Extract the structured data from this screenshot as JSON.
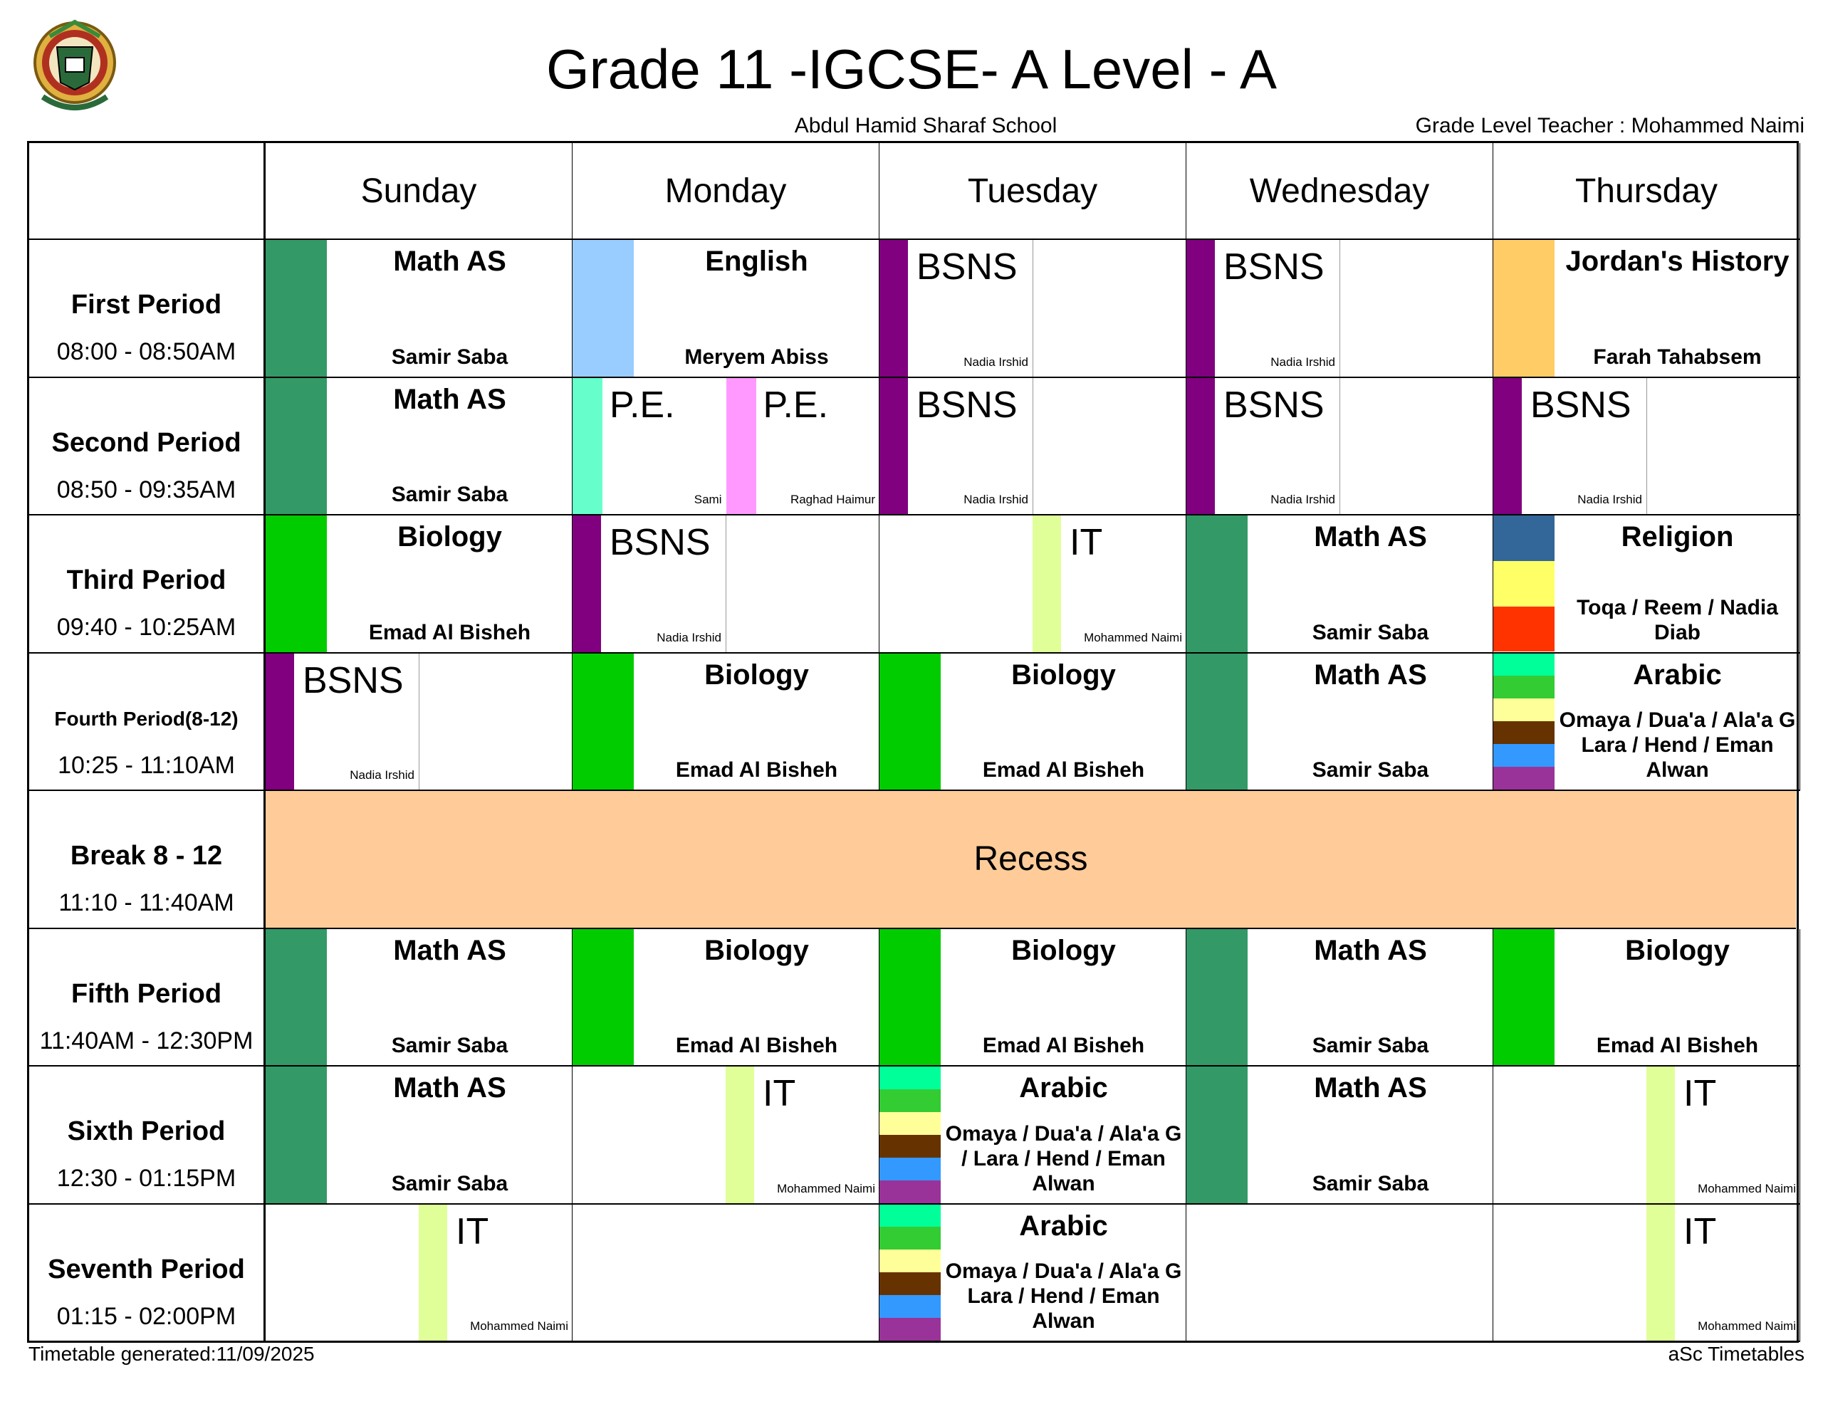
{
  "header": {
    "title": "Grade 11 -IGCSE- A Level - A",
    "school": "Abdul Hamid Sharaf School",
    "grade_teacher": "Grade Level Teacher : Mohammed Naimi"
  },
  "footer": {
    "generated": "Timetable generated:11/09/2025",
    "brand": "aSc Timetables"
  },
  "days": [
    "Sunday",
    "Monday",
    "Tuesday",
    "Wednesday",
    "Thursday"
  ],
  "periods": [
    {
      "name": "First Period",
      "time": "08:00 - 08:50AM"
    },
    {
      "name": "Second Period",
      "time": "08:50 - 09:35AM"
    },
    {
      "name": "Third Period",
      "time": "09:40 - 10:25AM"
    },
    {
      "name": "Fourth Period(8-12)",
      "time": "10:25 - 11:10AM"
    },
    {
      "name": "Break 8 - 12",
      "time": "11:10 - 11:40AM"
    },
    {
      "name": "Fifth Period",
      "time": "11:40AM - 12:30PM"
    },
    {
      "name": "Sixth Period",
      "time": "12:30 - 01:15PM"
    },
    {
      "name": "Seventh Period",
      "time": "01:15 - 02:00PM"
    }
  ],
  "recess": "Recess",
  "colors": {
    "math": "#339966",
    "english": "#99ccff",
    "bsns": "#800080",
    "pe_sami": "#66ffcc",
    "pe_raghad": "#ff99ff",
    "biology": "#00cc00",
    "it": "#e0ff99",
    "jordan": "#ffcc66",
    "recess": "#ffcc99"
  },
  "grid": [
    [
      [
        {
          "style": "wide",
          "title": "Math AS",
          "teacher": "Samir Saba",
          "colors": [
            "#339966"
          ]
        }
      ],
      [
        {
          "style": "wide",
          "title": "English",
          "teacher": "Meryem Abiss",
          "colors": [
            "#99ccff"
          ]
        }
      ],
      [
        {
          "style": "narrow",
          "title": "BSNS",
          "teacher": "Nadia Irshid",
          "color": "#800080"
        }
      ],
      [
        {
          "style": "narrow",
          "title": "BSNS",
          "teacher": "Nadia Irshid",
          "color": "#800080"
        }
      ],
      [
        {
          "style": "wide",
          "title": "Jordan's History",
          "teacher": "Farah Tahabsem",
          "colors": [
            "#ffcc66"
          ]
        }
      ]
    ],
    [
      [
        {
          "style": "wide",
          "title": "Math AS",
          "teacher": "Samir Saba",
          "colors": [
            "#339966"
          ]
        }
      ],
      [
        {
          "style": "half",
          "title": "P.E.",
          "teacher": "Sami",
          "color": "#66ffcc"
        },
        {
          "style": "half",
          "title": "P.E.",
          "teacher": "Raghad Haimur",
          "color": "#ff99ff"
        }
      ],
      [
        {
          "style": "narrow",
          "title": "BSNS",
          "teacher": "Nadia Irshid",
          "color": "#800080"
        }
      ],
      [
        {
          "style": "narrow",
          "title": "BSNS",
          "teacher": "Nadia Irshid",
          "color": "#800080"
        }
      ],
      [
        {
          "style": "narrow",
          "title": "BSNS",
          "teacher": "Nadia Irshid",
          "color": "#800080"
        }
      ]
    ],
    [
      [
        {
          "style": "wide",
          "title": "Biology",
          "teacher": "Emad Al Bisheh",
          "colors": [
            "#00cc00"
          ]
        }
      ],
      [
        {
          "style": "narrow",
          "title": "BSNS",
          "teacher": "Nadia Irshid",
          "color": "#800080"
        }
      ],
      [
        {
          "style": "right",
          "title": "IT",
          "teacher": "Mohammed Naimi",
          "color": "#e0ff99"
        }
      ],
      [
        {
          "style": "wide",
          "title": "Math AS",
          "teacher": "Samir Saba",
          "colors": [
            "#339966"
          ]
        }
      ],
      [
        {
          "style": "wide",
          "title": "Religion",
          "teacher": "Toqa / Reem / Nadia Diab",
          "colors": [
            "#336699",
            "#ffff66",
            "#ff3300"
          ]
        }
      ]
    ],
    [
      [
        {
          "style": "narrow",
          "title": "BSNS",
          "teacher": "Nadia Irshid",
          "color": "#800080"
        }
      ],
      [
        {
          "style": "wide",
          "title": "Biology",
          "teacher": "Emad Al Bisheh",
          "colors": [
            "#00cc00"
          ]
        }
      ],
      [
        {
          "style": "wide",
          "title": "Biology",
          "teacher": "Emad Al Bisheh",
          "colors": [
            "#00cc00"
          ]
        }
      ],
      [
        {
          "style": "wide",
          "title": "Math AS",
          "teacher": "Samir Saba",
          "colors": [
            "#339966"
          ]
        }
      ],
      [
        {
          "style": "wide",
          "title": "Arabic",
          "teacher": "Omaya / Dua'a / Ala'a G Lara / Hend / Eman Alwan",
          "colors": [
            "#00ff99",
            "#33cc33",
            "#ffff99",
            "#663300",
            "#3399ff",
            "#993399"
          ]
        }
      ]
    ],
    null,
    [
      [
        {
          "style": "wide",
          "title": "Math AS",
          "teacher": "Samir Saba",
          "colors": [
            "#339966"
          ]
        }
      ],
      [
        {
          "style": "wide",
          "title": "Biology",
          "teacher": "Emad Al Bisheh",
          "colors": [
            "#00cc00"
          ]
        }
      ],
      [
        {
          "style": "wide",
          "title": "Biology",
          "teacher": "Emad Al Bisheh",
          "colors": [
            "#00cc00"
          ]
        }
      ],
      [
        {
          "style": "wide",
          "title": "Math AS",
          "teacher": "Samir Saba",
          "colors": [
            "#339966"
          ]
        }
      ],
      [
        {
          "style": "wide",
          "title": "Biology",
          "teacher": "Emad Al Bisheh",
          "colors": [
            "#00cc00"
          ]
        }
      ]
    ],
    [
      [
        {
          "style": "wide",
          "title": "Math AS",
          "teacher": "Samir Saba",
          "colors": [
            "#339966"
          ]
        }
      ],
      [
        {
          "style": "right",
          "title": "IT",
          "teacher": "Mohammed Naimi",
          "color": "#e0ff99"
        }
      ],
      [
        {
          "style": "wide",
          "title": "Arabic",
          "teacher": "Omaya / Dua'a / Ala'a G / Lara / Hend / Eman Alwan",
          "colors": [
            "#00ff99",
            "#33cc33",
            "#ffff99",
            "#663300",
            "#3399ff",
            "#993399"
          ]
        }
      ],
      [
        {
          "style": "wide",
          "title": "Math AS",
          "teacher": "Samir Saba",
          "colors": [
            "#339966"
          ]
        }
      ],
      [
        {
          "style": "right",
          "title": "IT",
          "teacher": "Mohammed Naimi",
          "color": "#e0ff99"
        }
      ]
    ],
    [
      [
        {
          "style": "right",
          "title": "IT",
          "teacher": "Mohammed Naimi",
          "color": "#e0ff99"
        }
      ],
      [],
      [
        {
          "style": "wide",
          "title": "Arabic",
          "teacher": "Omaya / Dua'a / Ala'a G Lara / Hend / Eman Alwan",
          "colors": [
            "#00ff99",
            "#33cc33",
            "#ffff99",
            "#663300",
            "#3399ff",
            "#993399"
          ]
        }
      ],
      [],
      [
        {
          "style": "right",
          "title": "IT",
          "teacher": "Mohammed Naimi",
          "color": "#e0ff99"
        }
      ]
    ]
  ]
}
